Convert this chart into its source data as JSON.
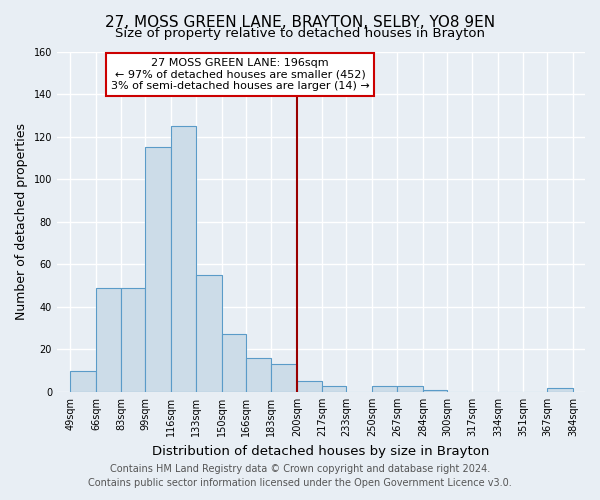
{
  "title": "27, MOSS GREEN LANE, BRAYTON, SELBY, YO8 9EN",
  "subtitle": "Size of property relative to detached houses in Brayton",
  "xlabel": "Distribution of detached houses by size in Brayton",
  "ylabel": "Number of detached properties",
  "bin_edges": [
    49,
    66,
    83,
    99,
    116,
    133,
    150,
    166,
    183,
    200,
    217,
    233,
    250,
    267,
    284,
    300,
    317,
    334,
    351,
    367,
    384
  ],
  "bar_heights": [
    10,
    49,
    49,
    115,
    125,
    55,
    27,
    16,
    13,
    5,
    3,
    0,
    3,
    3,
    1,
    0,
    0,
    0,
    0,
    2
  ],
  "bar_color": "#ccdce8",
  "bar_edge_color": "#5a9bc8",
  "vline_x": 200,
  "vline_color": "#990000",
  "annotation_title": "27 MOSS GREEN LANE: 196sqm",
  "annotation_line1": "← 97% of detached houses are smaller (452)",
  "annotation_line2": "3% of semi-detached houses are larger (14) →",
  "annotation_box_edge": "#cc0000",
  "annotation_box_fill": "white",
  "ylim": [
    0,
    160
  ],
  "xlim_left": 40,
  "xlim_right": 392,
  "footer1": "Contains HM Land Registry data © Crown copyright and database right 2024.",
  "footer2": "Contains public sector information licensed under the Open Government Licence v3.0.",
  "background_color": "#e8eef4",
  "grid_color": "#ffffff",
  "plot_bg_color": "#e8eef4",
  "title_fontsize": 11,
  "subtitle_fontsize": 9.5,
  "ylabel_fontsize": 9,
  "xlabel_fontsize": 9.5,
  "tick_fontsize": 7,
  "footer_fontsize": 7,
  "annotation_fontsize": 8
}
